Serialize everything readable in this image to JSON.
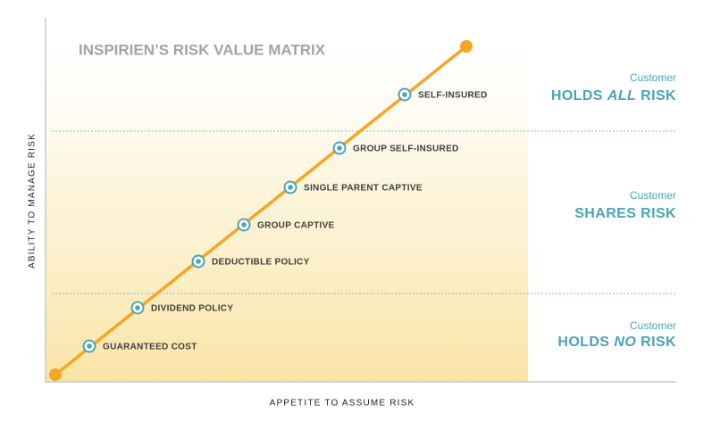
{
  "title": "INSPIRIEN’S RISK VALUE MATRIX",
  "x_axis_label": "APPETITE TO ASSUME RISK",
  "y_axis_label": "ABILITY TO MANAGE RISK",
  "points": [
    "GUARANTEED COST",
    "DIVIDEND POLICY",
    "DEDUCTIBLE POLICY",
    "GROUP CAPTIVE",
    "SINGLE PARENT CAPTIVE",
    "GROUP SELF-INSURED",
    "SELF-INSURED"
  ],
  "zones": [
    {
      "caption": "Customer",
      "prefix": "HOLDS",
      "emphasis": "ALL",
      "suffix": "RISK"
    },
    {
      "caption": "Customer",
      "label": "SHARES RISK"
    },
    {
      "caption": "Customer",
      "prefix": "HOLDS",
      "emphasis": "NO",
      "suffix": "RISK"
    }
  ]
}
